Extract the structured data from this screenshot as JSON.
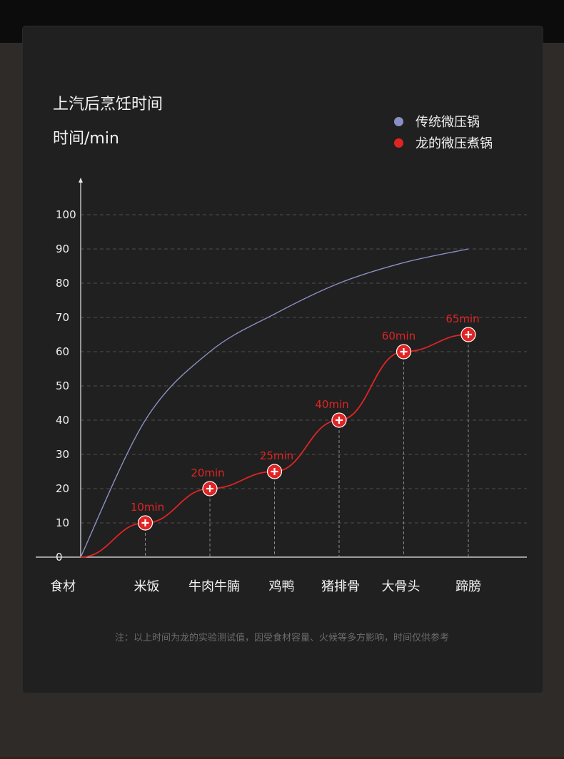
{
  "chart_data": {
    "type": "line",
    "title": "上汽后烹饪时间",
    "ylabel": "时间/min",
    "xlabel": "食材",
    "categories": [
      "米饭",
      "牛肉牛腩",
      "鸡鸭",
      "猪排骨",
      "大骨头",
      "蹄膀"
    ],
    "yticks": [
      0,
      10,
      20,
      30,
      40,
      50,
      60,
      70,
      80,
      90,
      100
    ],
    "ylim": [
      0,
      100
    ],
    "grid": true,
    "legend_position": "top-right",
    "series": [
      {
        "name": "传统微压锅",
        "color": "#8a90c4",
        "curve": "smooth",
        "x": [
          0,
          1,
          2,
          3,
          4,
          5,
          6
        ],
        "values": [
          0,
          40,
          60,
          71,
          80,
          86,
          90
        ]
      },
      {
        "name": "龙的微压煮锅",
        "color": "#e02424",
        "x": [
          0,
          1,
          2,
          3,
          4,
          5,
          6
        ],
        "values": [
          0,
          10,
          20,
          25,
          40,
          60,
          65
        ],
        "labels": [
          "",
          "10min",
          "20min",
          "25min",
          "40min",
          "60min",
          "65min"
        ]
      }
    ]
  },
  "footnote": "注：以上时间为龙的实验测试值，因受食材容量、火候等多方影响，时间仅供参考"
}
